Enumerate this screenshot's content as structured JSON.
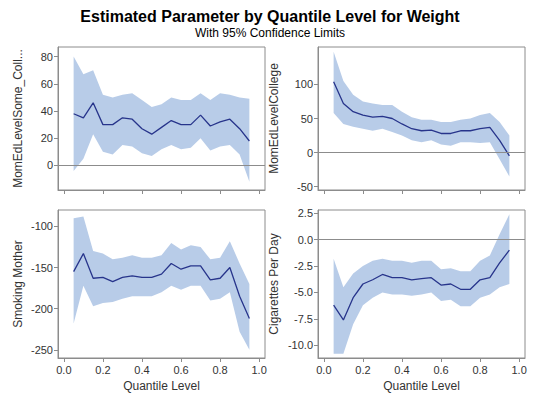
{
  "header": {
    "title": "Estimated Parameter by Quantile Level for Weight",
    "subtitle": "With 95% Confidence Limits"
  },
  "chart_data": [
    {
      "type": "line",
      "y_label": "MomEdLevelSome_Coll...",
      "tick_labels": "y",
      "grid": false,
      "x": [
        0.05,
        0.1,
        0.15,
        0.2,
        0.25,
        0.3,
        0.35,
        0.4,
        0.45,
        0.5,
        0.55,
        0.6,
        0.65,
        0.7,
        0.75,
        0.8,
        0.85,
        0.9,
        0.95
      ],
      "xlim": [
        -0.03,
        1.03
      ],
      "xticks": [
        {
          "value": 0,
          "label": "0.0"
        },
        0.2,
        0.4,
        0.6,
        0.8,
        {
          "value": 1,
          "label": "1.0"
        }
      ],
      "ylim": [
        -18,
        87
      ],
      "yticks": [
        0,
        20,
        40,
        60,
        80
      ],
      "ref_line": 0,
      "series": [
        {
          "color": "#27348b",
          "values": [
            38,
            35,
            46,
            30,
            30,
            35,
            34,
            27,
            23,
            28,
            33,
            30,
            30,
            37,
            29,
            32,
            34,
            27,
            18
          ],
          "lower": [
            -4,
            5,
            23,
            10,
            8,
            15,
            14,
            9,
            7,
            12,
            15,
            12,
            13,
            20,
            11,
            14,
            15,
            8,
            -12
          ],
          "upper": [
            80,
            67,
            70,
            52,
            50,
            52,
            53,
            48,
            43,
            45,
            50,
            48,
            48,
            53,
            48,
            53,
            52,
            50,
            49
          ]
        }
      ]
    },
    {
      "type": "line",
      "y_label": "MomEdLevelCollege",
      "tick_labels": "y",
      "grid": false,
      "x": [
        0.05,
        0.1,
        0.15,
        0.2,
        0.25,
        0.3,
        0.35,
        0.4,
        0.45,
        0.5,
        0.55,
        0.6,
        0.65,
        0.7,
        0.75,
        0.8,
        0.85,
        0.9,
        0.95
      ],
      "xlim": [
        -0.03,
        1.03
      ],
      "xticks": [
        {
          "value": 0,
          "label": "0.0"
        },
        0.2,
        0.4,
        0.6,
        0.8,
        {
          "value": 1,
          "label": "1.0"
        }
      ],
      "ylim": [
        -55,
        155
      ],
      "yticks": [
        -50,
        0,
        50,
        100
      ],
      "ref_line": 0,
      "series": [
        {
          "color": "#27348b",
          "values": [
            104,
            72,
            60,
            55,
            52,
            53,
            50,
            42,
            35,
            32,
            33,
            28,
            28,
            32,
            32,
            35,
            37,
            18,
            -5
          ],
          "lower": [
            58,
            42,
            38,
            35,
            32,
            35,
            30,
            25,
            18,
            15,
            18,
            12,
            10,
            15,
            15,
            14,
            15,
            -10,
            -35
          ],
          "upper": [
            148,
            105,
            85,
            75,
            72,
            70,
            70,
            60,
            52,
            48,
            48,
            45,
            45,
            48,
            50,
            55,
            58,
            45,
            25
          ]
        }
      ]
    },
    {
      "type": "line",
      "y_label": "Smoking Mother",
      "x_label": "Quantile Level",
      "grid": false,
      "x": [
        0.05,
        0.1,
        0.15,
        0.2,
        0.25,
        0.3,
        0.35,
        0.4,
        0.45,
        0.5,
        0.55,
        0.6,
        0.65,
        0.7,
        0.75,
        0.8,
        0.85,
        0.9,
        0.95
      ],
      "xlim": [
        -0.03,
        1.03
      ],
      "xticks": [
        {
          "value": 0,
          "label": "0.0"
        },
        0.2,
        0.4,
        0.6,
        0.8,
        {
          "value": 1,
          "label": "1.0"
        }
      ],
      "ylim": [
        -260,
        -80
      ],
      "yticks": [
        -250,
        -200,
        -150,
        -100
      ],
      "series": [
        {
          "color": "#27348b",
          "values": [
            -155,
            -133,
            -163,
            -162,
            -167,
            -162,
            -160,
            -162,
            -162,
            -158,
            -145,
            -152,
            -148,
            -148,
            -165,
            -163,
            -150,
            -185,
            -212
          ],
          "lower": [
            -218,
            -172,
            -197,
            -193,
            -192,
            -188,
            -185,
            -185,
            -185,
            -180,
            -172,
            -177,
            -172,
            -172,
            -190,
            -188,
            -180,
            -228,
            -250
          ],
          "upper": [
            -90,
            -88,
            -130,
            -133,
            -140,
            -138,
            -135,
            -138,
            -138,
            -135,
            -120,
            -128,
            -123,
            -125,
            -140,
            -138,
            -118,
            -145,
            -170
          ]
        }
      ]
    },
    {
      "type": "line",
      "y_label": "Cigarettes Per Day",
      "x_label": "Quantile Level",
      "grid": false,
      "x": [
        0.05,
        0.1,
        0.15,
        0.2,
        0.25,
        0.3,
        0.35,
        0.4,
        0.45,
        0.5,
        0.55,
        0.6,
        0.65,
        0.7,
        0.75,
        0.8,
        0.85,
        0.9,
        0.95
      ],
      "xlim": [
        -0.03,
        1.03
      ],
      "xticks": [
        {
          "value": 0,
          "label": "0.0"
        },
        0.2,
        0.4,
        0.6,
        0.8,
        {
          "value": 1,
          "label": "1.0"
        }
      ],
      "ylim": [
        -11.2,
        2.8
      ],
      "yticks": [
        {
          "value": -10,
          "label": "-10.0"
        },
        -7.5,
        {
          "value": -5,
          "label": "-5.0"
        },
        -2.5,
        {
          "value": 0,
          "label": "0.0"
        },
        2.5
      ],
      "ref_line": 0,
      "series": [
        {
          "color": "#27348b",
          "values": [
            -6.2,
            -7.6,
            -5.5,
            -4.2,
            -3.8,
            -3.3,
            -3.6,
            -3.6,
            -3.8,
            -3.7,
            -3.6,
            -4.3,
            -4.2,
            -4.7,
            -4.7,
            -3.8,
            -3.6,
            -2.2,
            -1.0
          ],
          "lower": [
            -10.8,
            -10.8,
            -8.0,
            -6.2,
            -5.5,
            -5.0,
            -5.2,
            -5.2,
            -5.3,
            -5.2,
            -5.0,
            -5.8,
            -5.7,
            -6.3,
            -6.3,
            -5.5,
            -5.2,
            -4.5,
            -4.2
          ],
          "upper": [
            -1.8,
            -4.5,
            -3.2,
            -2.5,
            -2.0,
            -1.8,
            -2.0,
            -2.0,
            -2.2,
            -2.0,
            -2.0,
            -2.8,
            -2.7,
            -3.0,
            -3.0,
            -2.0,
            -1.5,
            0.5,
            2.4
          ]
        }
      ]
    }
  ]
}
